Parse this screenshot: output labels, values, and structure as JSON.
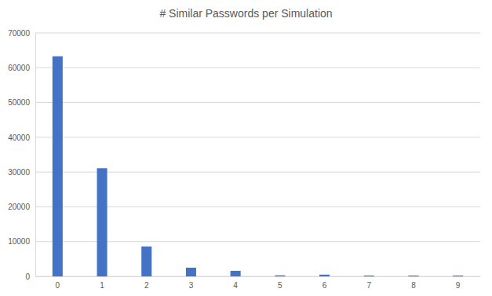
{
  "chart_data": {
    "type": "bar",
    "title": "# Similar Passwords per Simulation",
    "categories": [
      "0",
      "1",
      "2",
      "3",
      "4",
      "5",
      "6",
      "7",
      "8",
      "9"
    ],
    "values": [
      63300,
      31100,
      8600,
      2500,
      1600,
      300,
      500,
      250,
      250,
      250
    ],
    "color": "#4472c4",
    "ylim": [
      0,
      70000
    ],
    "yticks": [
      0,
      10000,
      20000,
      30000,
      40000,
      50000,
      60000,
      70000
    ],
    "grid": true
  }
}
